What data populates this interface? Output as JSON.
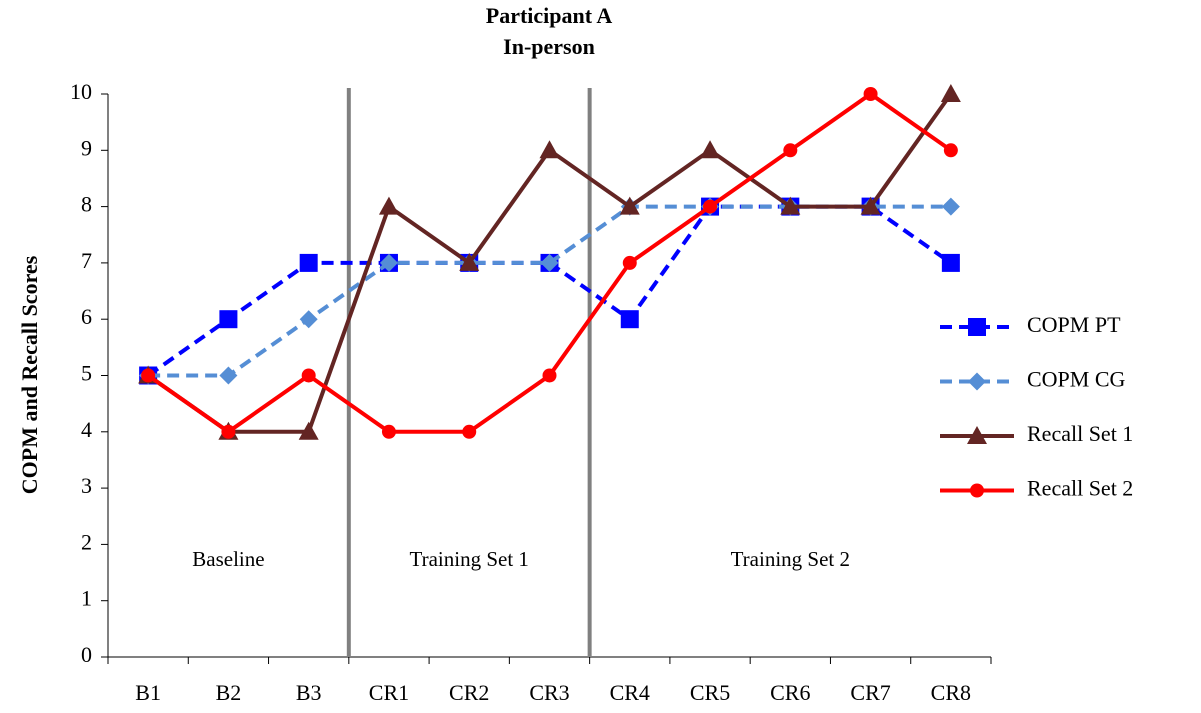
{
  "chart_data": {
    "type": "line",
    "title": "Participant A",
    "subtitle": "In-person",
    "y_label": "COPM and Recall Scores",
    "categories": [
      "B1",
      "B2",
      "B3",
      "CR1",
      "CR2",
      "CR3",
      "CR4",
      "CR5",
      "CR6",
      "CR7",
      "CR8"
    ],
    "ylim": [
      0,
      10
    ],
    "yticks": [
      0,
      1,
      2,
      3,
      4,
      5,
      6,
      7,
      8,
      9,
      10
    ],
    "legend": "right",
    "phases": [
      {
        "label": "Baseline",
        "from": "B1",
        "to": "B3"
      },
      {
        "label": "Training Set 1",
        "from": "CR1",
        "to": "CR3"
      },
      {
        "label": "Training Set 2",
        "from": "CR4",
        "to": "CR8"
      }
    ],
    "series": [
      {
        "name": "COPM PT",
        "color": "#0000ff",
        "marker": "square",
        "line_style": "dashed",
        "values": [
          5,
          6,
          7,
          7,
          7,
          7,
          6,
          8,
          8,
          8,
          7
        ]
      },
      {
        "name": "COPM CG",
        "color": "#558ed5",
        "marker": "diamond",
        "line_style": "dashed",
        "values": [
          5,
          5,
          6,
          7,
          7,
          7,
          8,
          8,
          8,
          8,
          8
        ]
      },
      {
        "name": "Recall Set 1",
        "color": "#632523",
        "marker": "triangle",
        "line_style": "solid",
        "values": [
          5,
          4,
          4,
          8,
          7,
          9,
          8,
          9,
          8,
          8,
          10
        ]
      },
      {
        "name": "Recall Set 2",
        "color": "#ff0000",
        "marker": "circle",
        "line_style": "solid",
        "values": [
          5,
          4,
          5,
          4,
          4,
          5,
          7,
          8,
          9,
          10,
          9
        ]
      }
    ]
  }
}
